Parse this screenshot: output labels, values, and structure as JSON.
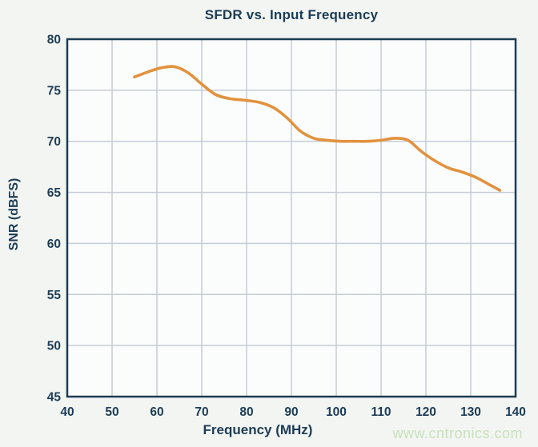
{
  "chart_data": {
    "type": "line",
    "title": "SFDR vs. Input Frequency",
    "xlabel": "Frequency (MHz)",
    "ylabel": "SNR (dBFS)",
    "xlim": [
      40,
      140
    ],
    "ylim": [
      45,
      80
    ],
    "x_ticks": [
      40,
      50,
      60,
      70,
      80,
      90,
      100,
      110,
      120,
      130,
      140
    ],
    "y_ticks": [
      45,
      50,
      55,
      60,
      65,
      70,
      75,
      80
    ],
    "grid": true,
    "legend": "none",
    "series": [
      {
        "name": "SFDR",
        "color": "#E2923E",
        "x": [
          55,
          58,
          61,
          64,
          67,
          70,
          73,
          76,
          80,
          83,
          86,
          89,
          92,
          95,
          98,
          101,
          104,
          107,
          110,
          113,
          116,
          119,
          122,
          125,
          128,
          131,
          134,
          136.5
        ],
        "y": [
          76.3,
          76.8,
          77.2,
          77.3,
          76.7,
          75.6,
          74.6,
          74.2,
          74.0,
          73.8,
          73.3,
          72.3,
          71.0,
          70.3,
          70.1,
          70.0,
          70.0,
          70.0,
          70.1,
          70.3,
          70.1,
          69.0,
          68.1,
          67.4,
          67.0,
          66.5,
          65.8,
          65.2
        ]
      }
    ]
  },
  "watermark": {
    "text": "www.cntronics.com",
    "color": "#CBE0BD"
  },
  "colors": {
    "text_navy": "#1D3C55",
    "axis_border": "#1D3C52",
    "gridline": "#C6CCD5",
    "curve_orange": "#E2923E",
    "figure_bg": "#F2F5F2",
    "plot_bg": "#FBFDFD",
    "watermark_green": "#CBE0BD"
  }
}
